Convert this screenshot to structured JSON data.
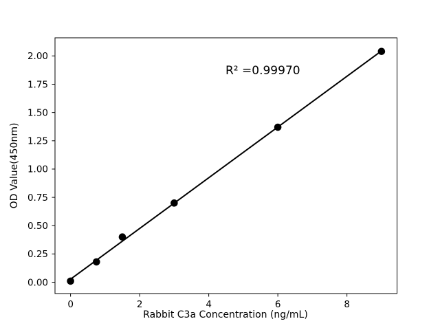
{
  "figure": {
    "background": "#ffffff"
  },
  "chart_data": {
    "type": "scatter",
    "title": "",
    "xlabel": "Rabbit C3a Concentration (ng/mL)",
    "ylabel": "OD Value(450nm)",
    "points": [
      {
        "x": 0,
        "y": 0.01
      },
      {
        "x": 0.75,
        "y": 0.18
      },
      {
        "x": 1.5,
        "y": 0.4
      },
      {
        "x": 3,
        "y": 0.7
      },
      {
        "x": 6,
        "y": 1.37
      },
      {
        "x": 9,
        "y": 2.04
      }
    ],
    "fit_line": {
      "type": "linear",
      "x_start": 0,
      "x_end": 9
    },
    "annotation": {
      "text": "R² =0.99970"
    },
    "x_ticks": [
      0,
      2,
      4,
      6,
      8
    ],
    "y_ticks": [
      0.0,
      0.25,
      0.5,
      0.75,
      1.0,
      1.25,
      1.5,
      1.75,
      2.0
    ],
    "y_tick_decimals": 2,
    "xlim": [
      -0.45,
      9.45
    ],
    "ylim": [
      -0.1,
      2.16
    ],
    "grid": false,
    "legend": null,
    "marker_color": "#000000",
    "line_color": "#000000",
    "axis_color": "#000000"
  }
}
